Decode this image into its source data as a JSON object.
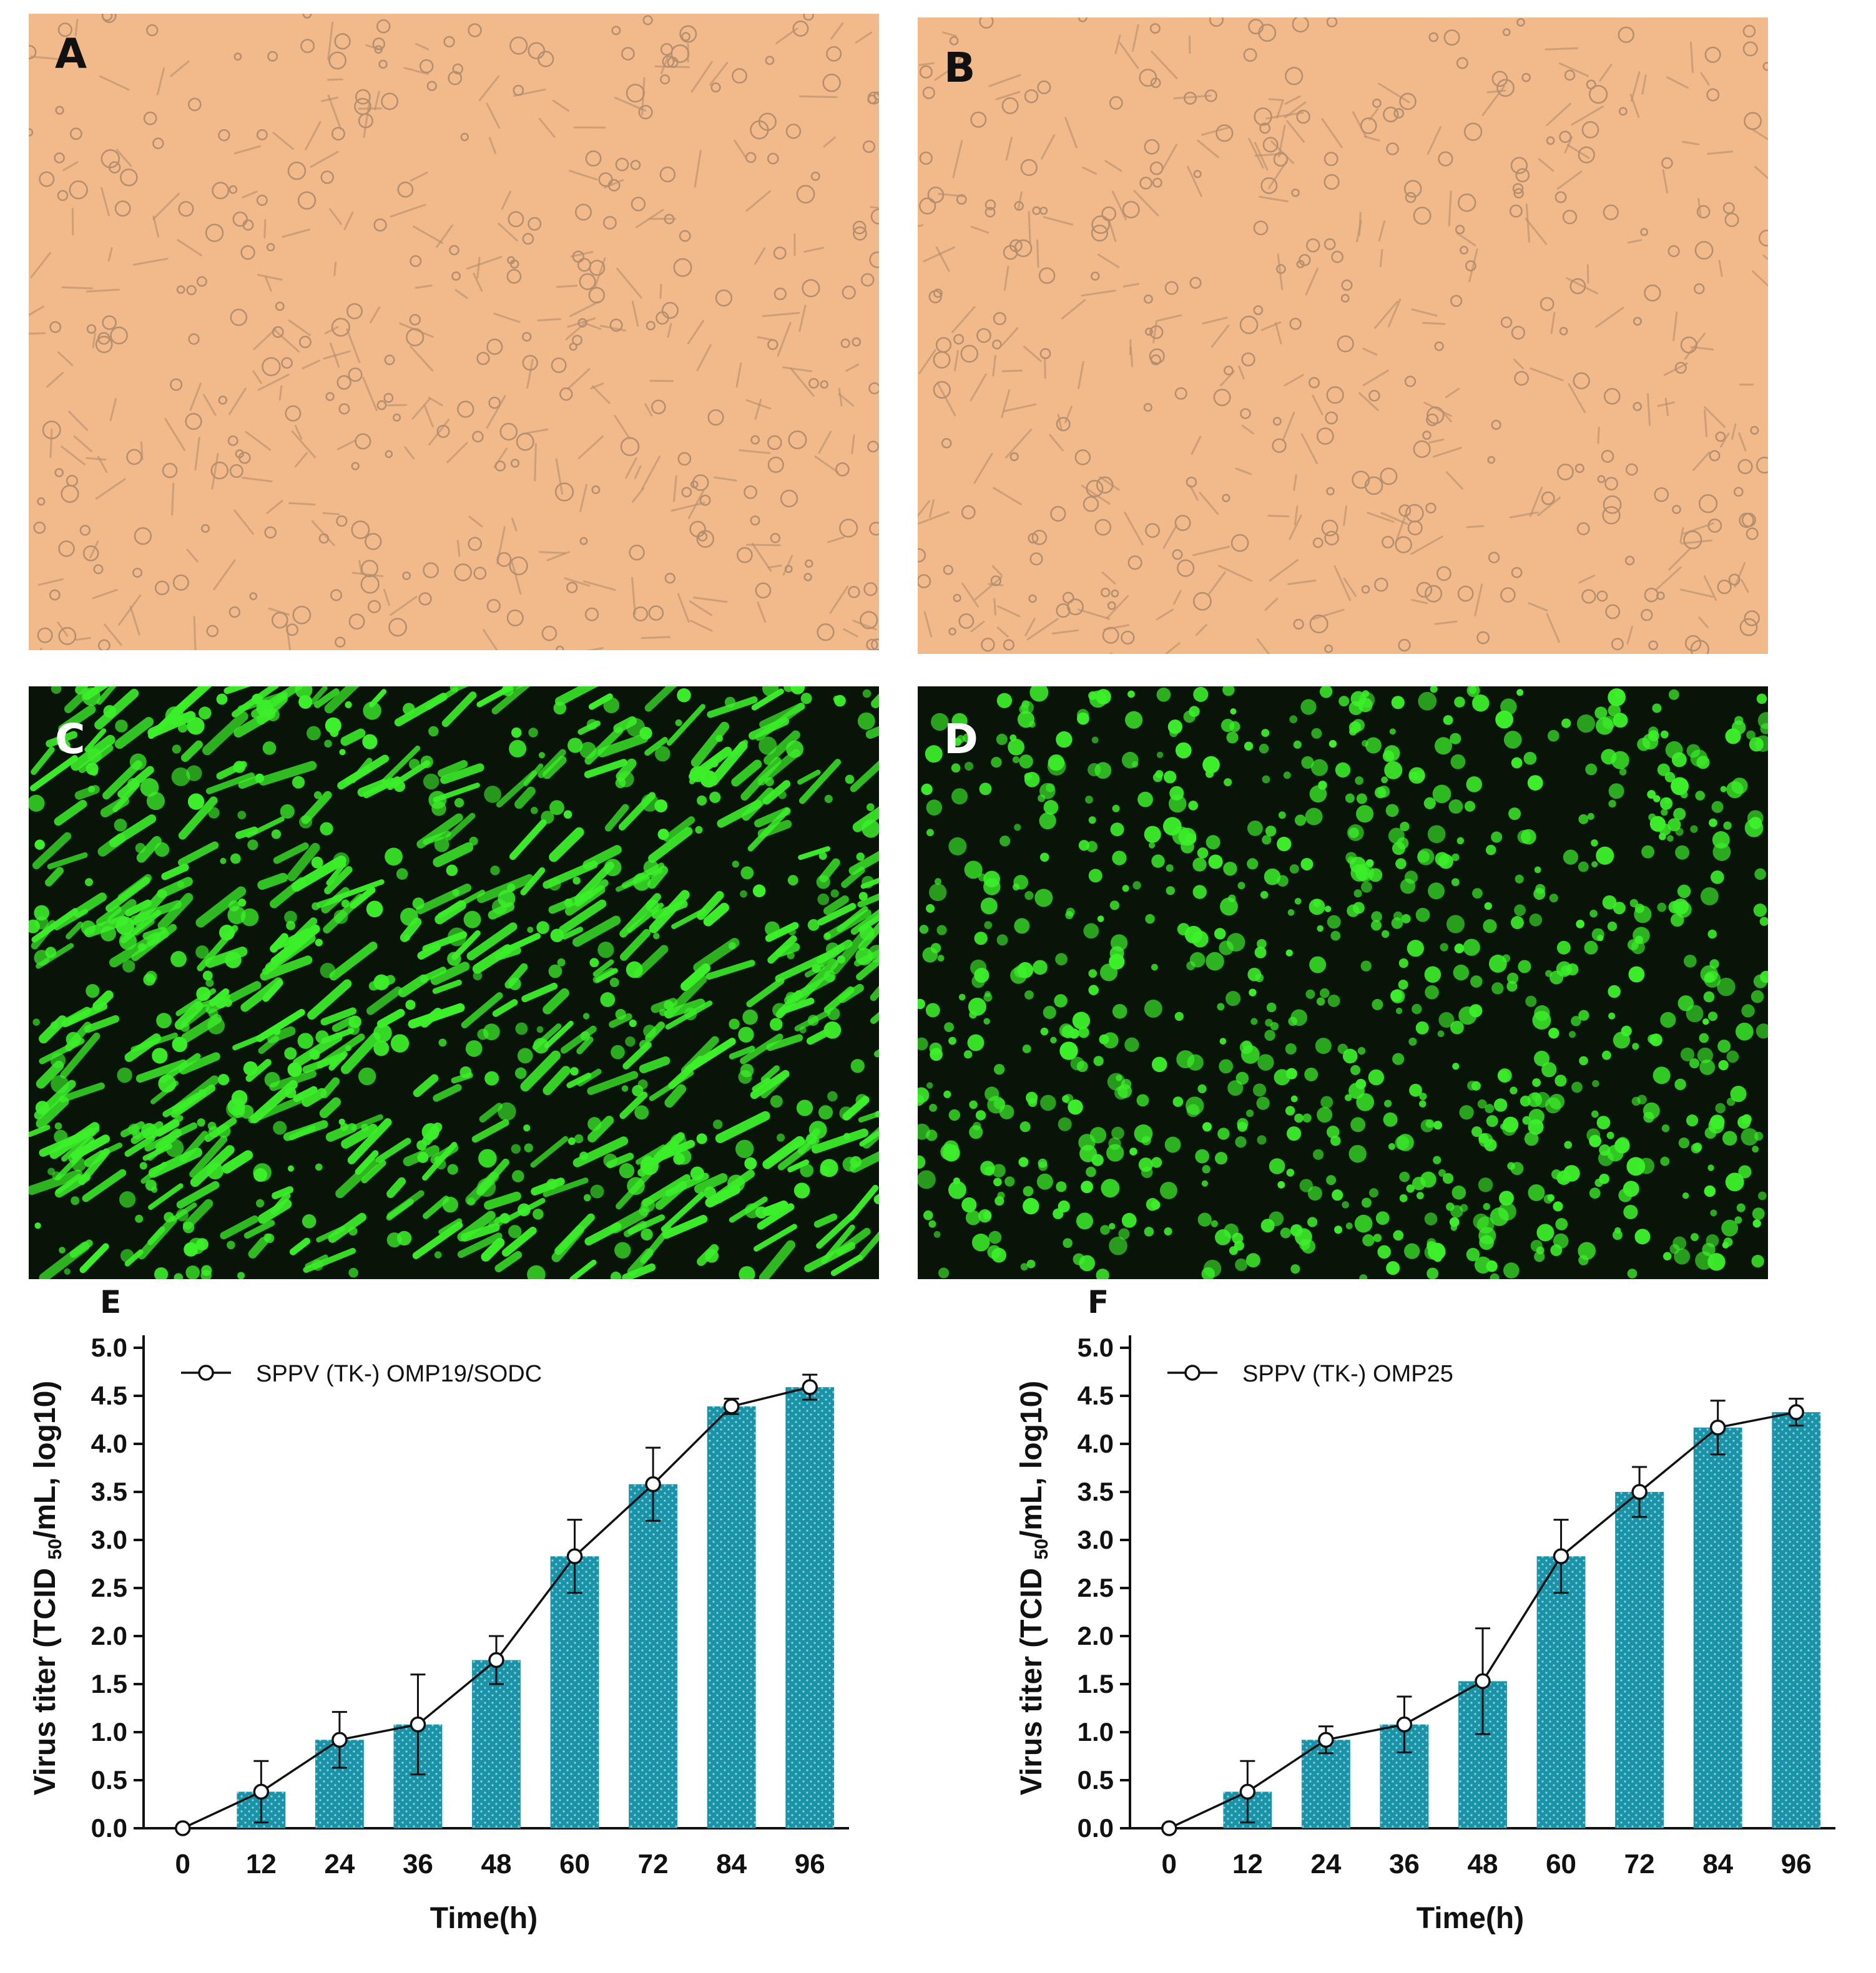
{
  "panels": [
    {
      "letter": "A",
      "kind": "brightfield"
    },
    {
      "letter": "B",
      "kind": "brightfield"
    },
    {
      "letter": "C",
      "kind": "fluorescence"
    },
    {
      "letter": "D",
      "kind": "fluorescence"
    }
  ],
  "colors": {
    "brightfield_bg": "#f2b98a",
    "brightfield_cell": "#a9876a",
    "fluor_bg": "#081408",
    "fluor_cell": "#3cf02a",
    "bar": "#1a93a8",
    "line": "#111111"
  },
  "chart_data": [
    {
      "type": "bar",
      "panel_label": "E",
      "categories": [
        "0",
        "12",
        "24",
        "36",
        "48",
        "60",
        "72",
        "84",
        "96"
      ],
      "series": [
        {
          "name": "SPPV (TK-) OMP19/SODC",
          "values": [
            0.0,
            0.38,
            0.92,
            1.08,
            1.75,
            2.83,
            3.58,
            4.39,
            4.59
          ],
          "error": [
            0.0,
            0.32,
            0.29,
            0.52,
            0.25,
            0.38,
            0.38,
            0.08,
            0.13
          ]
        }
      ],
      "overlay": "line with open circle markers connecting the bar tops",
      "xlabel": "Time(h)",
      "ylabel_prefix": "Virus titer (TCID",
      "ylabel_sub": "50",
      "ylabel_suffix": "/mL, log10)",
      "ylim": [
        0,
        5.0
      ],
      "yticks": [
        "0.0",
        "0.5",
        "1.0",
        "1.5",
        "2.0",
        "2.5",
        "3.0",
        "3.5",
        "4.0",
        "4.5",
        "5.0"
      ],
      "legend_position": "top-left",
      "grid": false
    },
    {
      "type": "bar",
      "panel_label": "F",
      "categories": [
        "0",
        "12",
        "24",
        "36",
        "48",
        "60",
        "72",
        "84",
        "96"
      ],
      "series": [
        {
          "name": "SPPV (TK-) OMP25",
          "values": [
            0.0,
            0.38,
            0.92,
            1.08,
            1.53,
            2.83,
            3.5,
            4.17,
            4.33
          ],
          "error": [
            0.0,
            0.32,
            0.14,
            0.29,
            0.55,
            0.38,
            0.26,
            0.28,
            0.14
          ]
        }
      ],
      "overlay": "line with open circle markers connecting the bar tops",
      "xlabel": "Time(h)",
      "ylabel_prefix": "Virus titer (TCID",
      "ylabel_sub": "50",
      "ylabel_suffix": "/mL, log10)",
      "ylim": [
        0,
        5.0
      ],
      "yticks": [
        "0.0",
        "0.5",
        "1.0",
        "1.5",
        "2.0",
        "2.5",
        "3.0",
        "3.5",
        "4.0",
        "4.5",
        "5.0"
      ],
      "legend_position": "top-left",
      "grid": false
    }
  ]
}
